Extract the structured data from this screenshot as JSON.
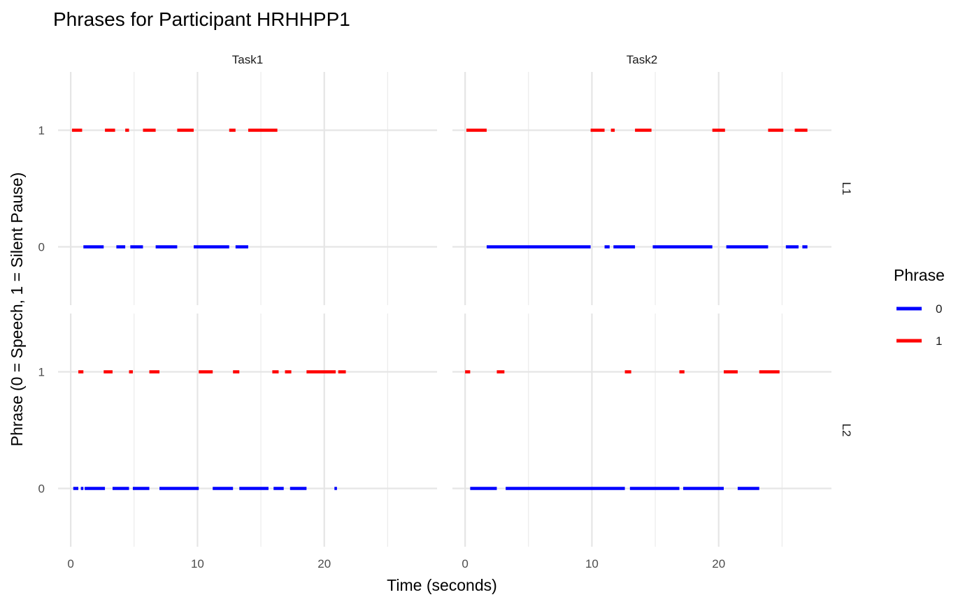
{
  "chart_data": {
    "type": "segment-timeline",
    "title": "Phrases for Participant HRHHPP1",
    "xlabel": "Time (seconds)",
    "ylabel": "Phrase (0 = Speech, 1 = Silent Pause)",
    "xlim": [
      -1,
      28.5
    ],
    "ylim": [
      -0.5,
      1.5
    ],
    "x_ticks": [
      0,
      10,
      20
    ],
    "y_ticks": [
      0,
      1
    ],
    "grid": true,
    "legend": {
      "title": "Phrase",
      "position": "right",
      "entries": [
        {
          "label": "0",
          "color": "#0000ff"
        },
        {
          "label": "1",
          "color": "#ff0000"
        }
      ]
    },
    "facet_columns": [
      "Task1",
      "Task2"
    ],
    "facet_rows": [
      "L1",
      "L2"
    ],
    "panels": [
      {
        "col": "Task1",
        "row": "L1",
        "segments": {
          "0": [
            [
              1.0,
              2.6
            ],
            [
              3.6,
              4.3
            ],
            [
              4.7,
              5.7
            ],
            [
              6.7,
              8.4
            ],
            [
              9.7,
              12.5
            ],
            [
              13.0,
              14.0
            ]
          ],
          "1": [
            [
              0.1,
              0.9
            ],
            [
              2.7,
              3.5
            ],
            [
              4.3,
              4.6
            ],
            [
              5.7,
              6.7
            ],
            [
              8.4,
              9.7
            ],
            [
              12.5,
              13.0
            ],
            [
              14.0,
              16.3
            ]
          ]
        }
      },
      {
        "col": "Task2",
        "row": "L1",
        "segments": {
          "0": [
            [
              1.7,
              9.9
            ],
            [
              11.0,
              11.4
            ],
            [
              11.7,
              13.4
            ],
            [
              14.8,
              19.5
            ],
            [
              20.6,
              23.9
            ],
            [
              25.3,
              26.3
            ],
            [
              26.6,
              27.0
            ]
          ],
          "1": [
            [
              0.1,
              1.7
            ],
            [
              9.9,
              11.0
            ],
            [
              11.5,
              11.8
            ],
            [
              13.4,
              14.7
            ],
            [
              19.5,
              20.5
            ],
            [
              23.9,
              25.1
            ],
            [
              26.0,
              27.0
            ]
          ]
        }
      },
      {
        "col": "Task2",
        "row": "L2",
        "segments": {
          "0": [
            [
              0.4,
              2.5
            ],
            [
              3.2,
              12.6
            ],
            [
              13.0,
              16.9
            ],
            [
              17.2,
              20.4
            ],
            [
              21.5,
              23.2
            ]
          ],
          "1": [
            [
              0.0,
              0.4
            ],
            [
              2.5,
              3.1
            ],
            [
              12.6,
              13.1
            ],
            [
              16.9,
              17.3
            ],
            [
              20.4,
              21.5
            ],
            [
              23.2,
              24.8
            ]
          ]
        }
      },
      {
        "col": "Task1",
        "row": "L2",
        "segments": {
          "0": [
            [
              0.2,
              0.6
            ],
            [
              0.8,
              1.0
            ],
            [
              1.1,
              2.7
            ],
            [
              3.3,
              4.6
            ],
            [
              4.9,
              6.2
            ],
            [
              7.0,
              10.1
            ],
            [
              11.2,
              12.8
            ],
            [
              13.3,
              15.6
            ],
            [
              16.0,
              16.8
            ],
            [
              17.3,
              18.6
            ],
            [
              20.8,
              21.0
            ]
          ],
          "1": [
            [
              0.6,
              1.0
            ],
            [
              2.6,
              3.3
            ],
            [
              4.6,
              4.9
            ],
            [
              6.2,
              7.0
            ],
            [
              10.1,
              11.2
            ],
            [
              12.8,
              13.3
            ],
            [
              15.9,
              16.4
            ],
            [
              16.9,
              17.4
            ],
            [
              18.6,
              20.9
            ],
            [
              21.1,
              21.7
            ]
          ]
        }
      }
    ]
  }
}
